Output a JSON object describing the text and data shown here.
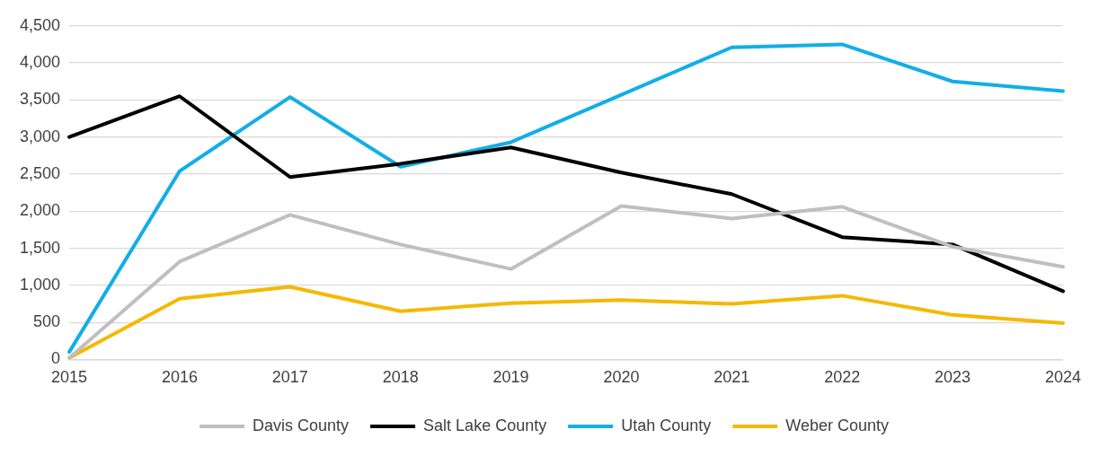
{
  "chart_data": {
    "type": "line",
    "categories": [
      "2015",
      "2016",
      "2017",
      "2018",
      "2019",
      "2020",
      "2021",
      "2022",
      "2023",
      "2024"
    ],
    "series": [
      {
        "name": "Davis County",
        "color": "#bfbfbf",
        "values": [
          20,
          1320,
          1950,
          1550,
          1220,
          2070,
          1900,
          2060,
          1520,
          1250
        ]
      },
      {
        "name": "Salt Lake County",
        "color": "#000000",
        "values": [
          3000,
          3550,
          2460,
          2640,
          2860,
          2520,
          2230,
          1650,
          1550,
          920
        ]
      },
      {
        "name": "Utah County",
        "color": "#12aee6",
        "values": [
          100,
          2540,
          3540,
          2600,
          2930,
          3570,
          4210,
          4250,
          3750,
          3620
        ]
      },
      {
        "name": "Weber County",
        "color": "#f5b800",
        "values": [
          20,
          820,
          980,
          650,
          760,
          800,
          750,
          860,
          600,
          490
        ]
      }
    ],
    "ylim": [
      0,
      4500
    ],
    "yticks": [
      0,
      500,
      {
        "value": 1000,
        "label": "1,000"
      },
      {
        "value": 1500,
        "label": "1,500"
      },
      {
        "value": 2000,
        "label": "2,000"
      },
      {
        "value": 2500,
        "label": "2,500"
      },
      {
        "value": 3000,
        "label": "3,000"
      },
      {
        "value": 3500,
        "label": "3,500"
      },
      {
        "value": 4000,
        "label": "4,000"
      },
      {
        "value": 4500,
        "label": "4,500"
      }
    ],
    "grid": "y",
    "legend": "bottom",
    "marker": "none",
    "line_style": "solid"
  }
}
